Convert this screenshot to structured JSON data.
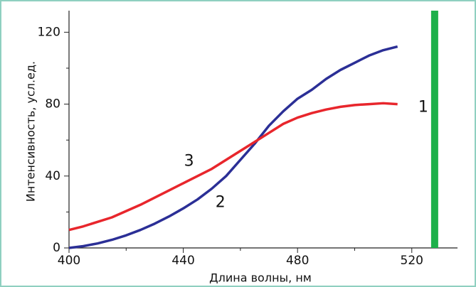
{
  "chart_data": {
    "type": "line",
    "x_label": "Длина волны, нм",
    "y_label": "Интенсивность, усл.ед.",
    "xlim": [
      400,
      536
    ],
    "xticks": [
      400,
      440,
      480,
      520
    ],
    "xminor": [
      420,
      460,
      500
    ],
    "ylim": [
      0,
      132
    ],
    "yticks": [
      0,
      40,
      80,
      120
    ],
    "yminor": [
      20,
      60,
      100
    ],
    "x": [
      400,
      405,
      410,
      415,
      420,
      425,
      430,
      435,
      440,
      445,
      450,
      455,
      460,
      465,
      470,
      475,
      480,
      485,
      490,
      495,
      500,
      505,
      510,
      515
    ],
    "series": [
      {
        "name": "2",
        "color": "#2b2f96",
        "values": [
          0,
          1,
          2.5,
          4.5,
          7,
          10,
          13.5,
          17.5,
          22,
          27,
          33,
          40,
          49,
          58,
          68,
          76,
          83,
          88,
          94,
          99,
          103,
          107,
          110,
          112
        ]
      },
      {
        "name": "3",
        "color": "#e8262c",
        "values": [
          10,
          12,
          14.5,
          17,
          20.5,
          24,
          28,
          32,
          36,
          40,
          44,
          49,
          54,
          59,
          64,
          69,
          72.5,
          75,
          77,
          78.5,
          79.5,
          80,
          80.5,
          80
        ]
      }
    ],
    "bar": {
      "name": "1",
      "x": 528,
      "value": 132,
      "color": "#1db04a"
    }
  }
}
